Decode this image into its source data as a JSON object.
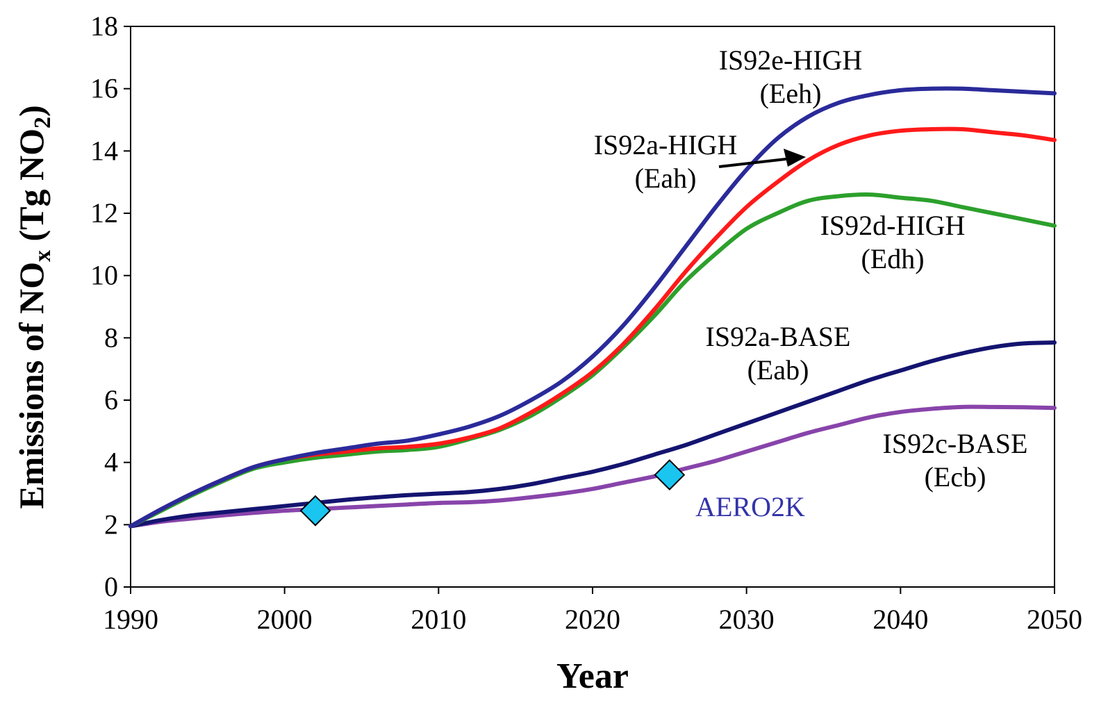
{
  "chart_data": {
    "type": "line",
    "xlabel": "Year",
    "ylabel_main": "Emissions of NO",
    "ylabel_sub1": "x",
    "ylabel_mid": " (Tg NO",
    "ylabel_sub2": "2",
    "ylabel_end": ")",
    "xlim": [
      1990,
      2050
    ],
    "ylim": [
      0,
      18
    ],
    "xticks": [
      1990,
      2000,
      2010,
      2020,
      2030,
      2040,
      2050
    ],
    "yticks": [
      0,
      2,
      4,
      6,
      8,
      10,
      12,
      14,
      16,
      18
    ],
    "grid": false,
    "x": [
      1990,
      1992,
      1994,
      1996,
      1998,
      2000,
      2002,
      2004,
      2006,
      2008,
      2010,
      2012,
      2014,
      2016,
      2018,
      2020,
      2022,
      2024,
      2026,
      2028,
      2030,
      2032,
      2034,
      2036,
      2038,
      2040,
      2042,
      2044,
      2046,
      2048,
      2050
    ],
    "series": [
      {
        "label_line1": "IS92e-HIGH",
        "label_line2": "(Eeh)",
        "color": "#2a2a9a",
        "values": [
          1.95,
          2.5,
          3.0,
          3.45,
          3.85,
          4.1,
          4.3,
          4.45,
          4.6,
          4.7,
          4.9,
          5.15,
          5.5,
          6.0,
          6.6,
          7.4,
          8.4,
          9.6,
          10.9,
          12.2,
          13.4,
          14.4,
          15.1,
          15.55,
          15.8,
          15.95,
          16.0,
          16.0,
          15.95,
          15.9,
          15.85
        ]
      },
      {
        "label_line1": "IS92a-HIGH",
        "label_line2": "(Eah)",
        "color": "#ff1a1a",
        "values": [
          1.95,
          2.5,
          3.0,
          3.45,
          3.85,
          4.1,
          4.25,
          4.35,
          4.45,
          4.5,
          4.6,
          4.8,
          5.1,
          5.6,
          6.2,
          6.9,
          7.8,
          8.9,
          10.1,
          11.2,
          12.2,
          13.0,
          13.7,
          14.2,
          14.5,
          14.65,
          14.7,
          14.7,
          14.6,
          14.5,
          14.35
        ]
      },
      {
        "label_line1": "IS92d-HIGH",
        "label_line2": "(Edh)",
        "color": "#2ca02c",
        "values": [
          1.95,
          2.45,
          2.95,
          3.4,
          3.8,
          4.0,
          4.15,
          4.25,
          4.35,
          4.4,
          4.5,
          4.75,
          5.05,
          5.5,
          6.1,
          6.8,
          7.7,
          8.7,
          9.8,
          10.7,
          11.5,
          12.0,
          12.4,
          12.55,
          12.6,
          12.5,
          12.4,
          12.2,
          12.0,
          11.8,
          11.6
        ]
      },
      {
        "label_line1": "IS92a-BASE",
        "label_line2": "(Eab)",
        "color": "#141470",
        "values": [
          1.95,
          2.15,
          2.3,
          2.4,
          2.5,
          2.6,
          2.7,
          2.8,
          2.88,
          2.95,
          3.0,
          3.05,
          3.15,
          3.3,
          3.5,
          3.7,
          3.95,
          4.25,
          4.55,
          4.9,
          5.25,
          5.6,
          5.95,
          6.3,
          6.65,
          6.95,
          7.25,
          7.5,
          7.7,
          7.82,
          7.85
        ]
      },
      {
        "label_line1": "IS92c-BASE",
        "label_line2": "(Ecb)",
        "color": "#8844aa",
        "values": [
          1.95,
          2.1,
          2.2,
          2.3,
          2.38,
          2.45,
          2.5,
          2.55,
          2.6,
          2.65,
          2.7,
          2.72,
          2.78,
          2.88,
          3.0,
          3.15,
          3.35,
          3.55,
          3.8,
          4.05,
          4.35,
          4.65,
          4.95,
          5.2,
          5.45,
          5.62,
          5.72,
          5.78,
          5.78,
          5.77,
          5.75
        ]
      }
    ],
    "aero2k": {
      "label": "AERO2K",
      "label_color": "#3333aa",
      "marker_color": "#1ac6f0",
      "points": [
        {
          "x": 2002,
          "y": 2.45
        },
        {
          "x": 2025,
          "y": 3.6
        }
      ]
    }
  }
}
